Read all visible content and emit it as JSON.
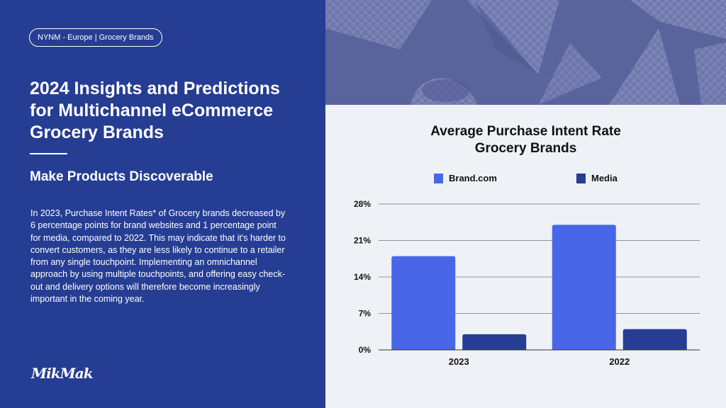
{
  "badge": "NYNM - Europe | Grocery Brands",
  "title": "2024 Insights and Predictions for Multichannel eCommerce Grocery Brands",
  "subtitle": "Make Products Discoverable",
  "body": "In 2023, Purchase Intent Rates* of Grocery brands decreased by 6 percentage points for brand websites and 1 percentage point for media, compared to 2022. This may indicate that it's harder to convert customers, as they are less likely to continue to a retailer from any single touchpoint. Implementing an omnichannel approach by using multiple touchpoints, and offering easy check-out and delivery options will therefore become increasingly important in the coming year.",
  "logo": "MikMak",
  "photo": {
    "icon": "waffle-cones-image"
  },
  "colors": {
    "panel": "#253d93",
    "brand": "#4a66e8",
    "media": "#253d93",
    "chart_bg": "#eef2f7"
  },
  "chart_data": {
    "type": "bar",
    "title": "Average Purchase Intent Rate Grocery Brands",
    "title_lines": [
      "Average Purchase Intent Rate",
      "Grocery Brands"
    ],
    "categories": [
      "2023",
      "2022"
    ],
    "series": [
      {
        "name": "Brand.com",
        "values": [
          18,
          24
        ]
      },
      {
        "name": "Media",
        "values": [
          3,
          4
        ]
      }
    ],
    "yticks": [
      "0%",
      "7%",
      "14%",
      "21%",
      "28%"
    ],
    "ytick_values": [
      0,
      7,
      14,
      21,
      28
    ],
    "ylim": [
      0,
      28
    ],
    "grid": true,
    "legend_position": "top"
  }
}
